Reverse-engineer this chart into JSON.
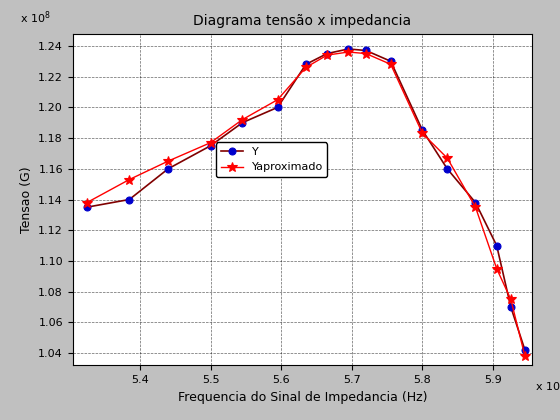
{
  "title": "Diagrama tensão x impedancia",
  "xlabel": "Frequencia do Sinal de Impedancia (Hz)",
  "ylabel": "Tensao (G)",
  "xlim": [
    5305000000000.0,
    5955000000000.0
  ],
  "ylim": [
    103200000.0,
    124800000.0
  ],
  "yticks": [
    1.04,
    1.06,
    1.08,
    1.1,
    1.12,
    1.14,
    1.16,
    1.18,
    1.2,
    1.22,
    1.24
  ],
  "xticks": [
    5.4,
    5.5,
    5.6,
    5.7,
    5.8,
    5.9
  ],
  "bg_color": "#c0c0c0",
  "plot_bg_color": "#ffffff",
  "Y_x": [
    5325000000000.0,
    5385000000000.0,
    5440000000000.0,
    5500000000000.0,
    5545000000000.0,
    5595000000000.0,
    5635000000000.0,
    5665000000000.0,
    5695000000000.0,
    5720000000000.0,
    5755000000000.0,
    5800000000000.0,
    5835000000000.0,
    5875000000000.0,
    5905000000000.0,
    5925000000000.0,
    5945000000000.0
  ],
  "Y_y": [
    113500000.0,
    114000000.0,
    116000000.0,
    117500000.0,
    119000000.0,
    120000000.0,
    122800000.0,
    123500000.0,
    123800000.0,
    123700000.0,
    123000000.0,
    118500000.0,
    116000000.0,
    113800000.0,
    111000000.0,
    107000000.0,
    104200000.0
  ],
  "Yapprox_x": [
    5325000000000.0,
    5385000000000.0,
    5440000000000.0,
    5500000000000.0,
    5545000000000.0,
    5595000000000.0,
    5635000000000.0,
    5665000000000.0,
    5695000000000.0,
    5720000000000.0,
    5755000000000.0,
    5800000000000.0,
    5835000000000.0,
    5875000000000.0,
    5905000000000.0,
    5925000000000.0,
    5945000000000.0
  ],
  "Yapprox_y": [
    113800000.0,
    115300000.0,
    116500000.0,
    117700000.0,
    119200000.0,
    120500000.0,
    122600000.0,
    123400000.0,
    123600000.0,
    123500000.0,
    122800000.0,
    118300000.0,
    116700000.0,
    113500000.0,
    109500000.0,
    107500000.0,
    103800000.0
  ],
  "Y_line_color": "#800000",
  "Y_marker_color": "#0000cc",
  "Yapprox_line_color": "#ff0000",
  "Yapprox_marker_color": "#ff0000",
  "Y_label": "Y",
  "Yapprox_label": "Yaproximado",
  "title_fontsize": 10,
  "label_fontsize": 9,
  "tick_fontsize": 8,
  "legend_fontsize": 8
}
